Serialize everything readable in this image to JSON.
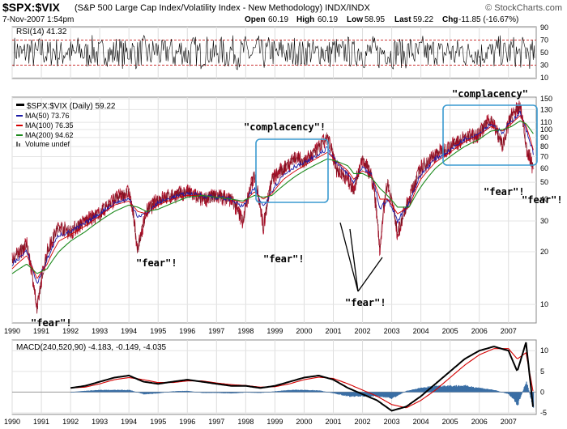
{
  "header": {
    "symbol": "$SPX:$VIX",
    "description": "(S&P 500 Large Cap Index/Volatility Index - New Methodology) INDX/INDX",
    "datetime": "7-Nov-2007 1:54pm",
    "open_label": "Open",
    "open": "60.19",
    "high_label": "High",
    "high": "60.19",
    "low_label": "Low",
    "low": "58.95",
    "last_label": "Last",
    "last": "59.22",
    "chg_label": "Chg",
    "chg": "-11.85 (-16.67%)",
    "watermark": "© StockCharts.com"
  },
  "chart_data": [
    {
      "type": "line",
      "panel": "RSI",
      "title": "RSI(14) 41.32",
      "ylim": [
        10,
        90
      ],
      "y_ticks": [
        10,
        30,
        50,
        70,
        90
      ],
      "last": 41.32,
      "series": [
        {
          "name": "RSI(14)",
          "color": "#000000"
        }
      ]
    },
    {
      "type": "line",
      "panel": "price",
      "title": "$SPX:$VIX (Daily) 59.22",
      "scale": "log",
      "ylim": [
        8,
        150
      ],
      "y_ticks": [
        10,
        20,
        30,
        40,
        50,
        60,
        70,
        80,
        90,
        100,
        110,
        130,
        150
      ],
      "x_ticks": [
        "1990",
        "1991",
        "1992",
        "1993",
        "1994",
        "1995",
        "1996",
        "1997",
        "1998",
        "1999",
        "2000",
        "2001",
        "2002",
        "2003",
        "2004",
        "2005",
        "2006",
        "2007"
      ],
      "legend": [
        {
          "label": "$SPX:$VIX (Daily) 59.22",
          "color": "#000000"
        },
        {
          "label": "MA(50) 73.76",
          "color": "#1a1aa6"
        },
        {
          "label": "MA(100) 76.35",
          "color": "#d40000"
        },
        {
          "label": "MA(200) 94.62",
          "color": "#1d8a1d"
        },
        {
          "label": "Volume undef",
          "color": "#666666"
        }
      ],
      "x": [
        1990.0,
        1990.5,
        1990.85,
        1991.2,
        1991.6,
        1992.0,
        1992.5,
        1993.0,
        1993.5,
        1994.0,
        1994.3,
        1994.6,
        1995.0,
        1995.5,
        1996.0,
        1996.5,
        1997.0,
        1997.5,
        1997.9,
        1998.3,
        1998.6,
        1998.9,
        1999.3,
        1999.7,
        2000.0,
        2000.4,
        2000.8,
        2001.1,
        2001.5,
        2001.7,
        2002.0,
        2002.3,
        2002.6,
        2002.85,
        2003.2,
        2003.6,
        2004.0,
        2004.5,
        2005.0,
        2005.5,
        2006.0,
        2006.4,
        2006.8,
        2007.1,
        2007.4,
        2007.6,
        2007.85
      ],
      "series": [
        {
          "name": "$SPX:$VIX",
          "values": [
            18,
            22,
            9,
            20,
            28,
            26,
            30,
            33,
            40,
            44,
            20,
            34,
            40,
            42,
            44,
            40,
            42,
            40,
            30,
            55,
            27,
            52,
            60,
            70,
            65,
            75,
            90,
            60,
            52,
            45,
            68,
            55,
            20,
            50,
            25,
            40,
            60,
            72,
            80,
            90,
            95,
            115,
            80,
            120,
            135,
            80,
            59.22
          ]
        },
        {
          "name": "MA(50)",
          "values": [
            17,
            20,
            13,
            18,
            25,
            26,
            29,
            33,
            38,
            40,
            32,
            33,
            38,
            41,
            43,
            42,
            41,
            40,
            36,
            46,
            36,
            45,
            55,
            62,
            64,
            70,
            78,
            65,
            55,
            50,
            60,
            55,
            35,
            40,
            30,
            38,
            55,
            68,
            76,
            88,
            95,
            108,
            95,
            112,
            125,
            100,
            73.76
          ]
        },
        {
          "name": "MA(100)",
          "values": [
            16,
            19,
            14,
            17,
            23,
            25,
            28,
            32,
            37,
            39,
            34,
            33,
            37,
            40,
            42,
            42,
            41,
            40,
            38,
            44,
            40,
            43,
            52,
            58,
            62,
            68,
            74,
            66,
            58,
            52,
            58,
            55,
            40,
            40,
            33,
            36,
            52,
            65,
            74,
            85,
            93,
            104,
            98,
            108,
            120,
            105,
            76.35
          ]
        },
        {
          "name": "MA(200)",
          "values": [
            15,
            17,
            15,
            16,
            20,
            23,
            26,
            30,
            34,
            37,
            36,
            34,
            35,
            38,
            41,
            42,
            41,
            40,
            39,
            42,
            41,
            42,
            48,
            54,
            58,
            63,
            68,
            66,
            62,
            56,
            56,
            53,
            46,
            42,
            36,
            36,
            47,
            60,
            70,
            80,
            88,
            98,
            100,
            104,
            112,
            108,
            94.62
          ]
        }
      ]
    },
    {
      "type": "line",
      "panel": "MACD",
      "title": "MACD(240,520,90) -4.183, -0.149, -4.035",
      "ylim": [
        -5,
        12
      ],
      "y_ticks": [
        -5,
        0,
        5,
        10
      ],
      "x_ticks": [
        "1990",
        "1991",
        "1992",
        "1993",
        "1994",
        "1995",
        "1996",
        "1997",
        "1998",
        "1999",
        "2000",
        "2001",
        "2002",
        "2003",
        "2004",
        "2005",
        "2006",
        "2007"
      ],
      "x": [
        1992.0,
        1992.5,
        1993.0,
        1993.5,
        1994.0,
        1994.5,
        1995.0,
        1995.5,
        1996.0,
        1996.5,
        1997.0,
        1997.5,
        1998.0,
        1998.5,
        1999.0,
        1999.5,
        2000.0,
        2000.5,
        2001.0,
        2001.5,
        2002.0,
        2002.5,
        2003.0,
        2003.5,
        2004.0,
        2004.5,
        2005.0,
        2005.5,
        2006.0,
        2006.5,
        2007.0,
        2007.3,
        2007.6,
        2007.85
      ],
      "series": [
        {
          "name": "MACD",
          "color": "#000000",
          "values": [
            1,
            1.5,
            2.5,
            3.5,
            4,
            2.5,
            2,
            2.5,
            3,
            2.5,
            2,
            1.5,
            1.5,
            1,
            1.5,
            2.5,
            3.5,
            4,
            3,
            1,
            -0.5,
            -2,
            -4.5,
            -3.5,
            -1,
            2,
            5,
            8,
            10,
            11,
            10,
            5,
            12,
            -4.183
          ]
        },
        {
          "name": "Signal",
          "color": "#d40000",
          "values": [
            1,
            1.2,
            2,
            3,
            3.5,
            3,
            2.3,
            2.3,
            2.7,
            2.7,
            2.2,
            1.8,
            1.6,
            1.2,
            1.3,
            2,
            3,
            3.6,
            3.3,
            2,
            0.5,
            -1,
            -3,
            -3.8,
            -2,
            0.5,
            3.5,
            6.5,
            9,
            10.5,
            10.5,
            8,
            9.5,
            -0.149
          ]
        },
        {
          "name": "Histogram",
          "color": "#3a6ea5",
          "values": [
            0,
            0.3,
            0.5,
            0.5,
            0.5,
            -0.5,
            -0.3,
            0.2,
            0.3,
            -0.2,
            -0.2,
            -0.3,
            -0.1,
            -0.2,
            0.2,
            0.5,
            0.5,
            0.4,
            -0.3,
            -1,
            -1,
            -1,
            -1.5,
            0.3,
            1,
            1.5,
            1.5,
            1.5,
            1,
            0.5,
            -0.5,
            -3,
            2.5,
            -4.035
          ]
        }
      ]
    }
  ],
  "annotations": [
    {
      "text": "\"fear\"!"
    },
    {
      "text": "\"fear\"!"
    },
    {
      "text": "\"fear\"!"
    },
    {
      "text": "\"complacency\"!"
    },
    {
      "text": "\"fear\"!"
    },
    {
      "text": "\"complacency\""
    },
    {
      "text": "\"fear\"!"
    },
    {
      "text": "\"fear\"!"
    }
  ]
}
